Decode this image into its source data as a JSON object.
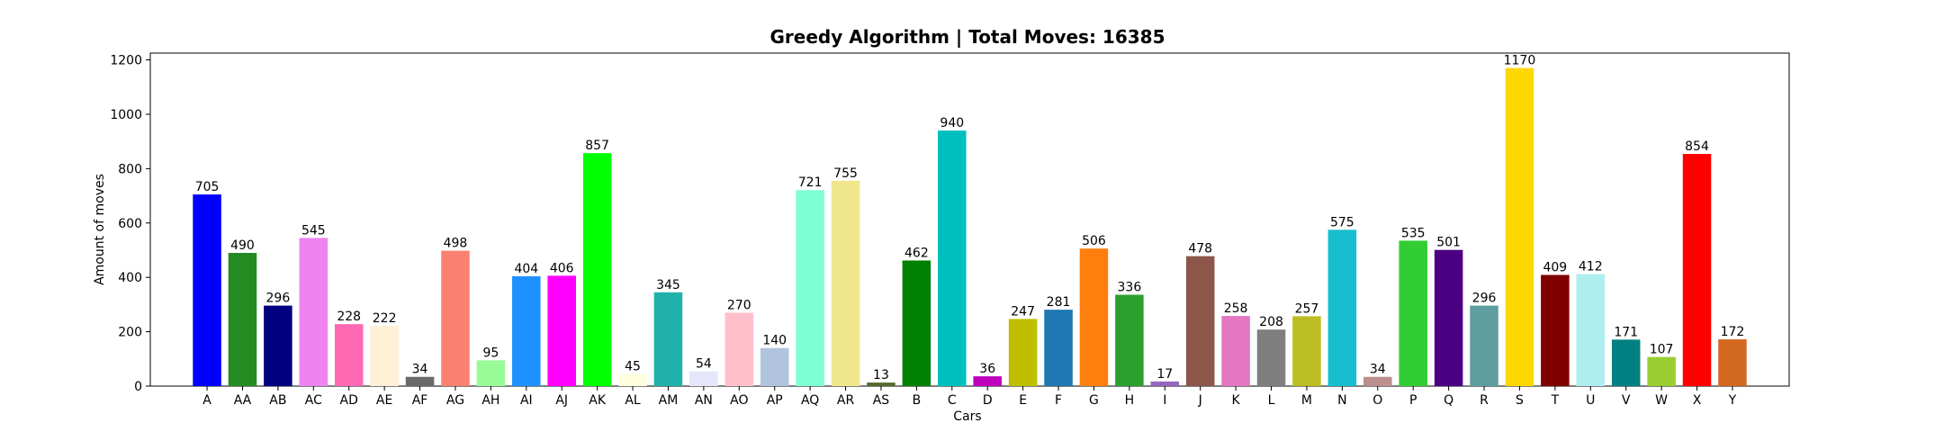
{
  "chart_data": {
    "type": "bar",
    "title": "Greedy Algorithm | Total Moves: 16385",
    "xlabel": "Cars",
    "ylabel": "Amount of moves",
    "ylim": [
      0,
      1225
    ],
    "yticks": [
      0,
      200,
      400,
      600,
      800,
      1000,
      1200
    ],
    "grid": false,
    "categories": [
      "A",
      "AA",
      "AB",
      "AC",
      "AD",
      "AE",
      "AF",
      "AG",
      "AH",
      "AI",
      "AJ",
      "AK",
      "AL",
      "AM",
      "AN",
      "AO",
      "AP",
      "AQ",
      "AR",
      "AS",
      "B",
      "C",
      "D",
      "E",
      "F",
      "G",
      "H",
      "I",
      "J",
      "K",
      "L",
      "M",
      "N",
      "O",
      "P",
      "Q",
      "R",
      "S",
      "T",
      "U",
      "V",
      "W",
      "X",
      "Y"
    ],
    "values": [
      705,
      490,
      296,
      545,
      228,
      222,
      34,
      498,
      95,
      404,
      406,
      857,
      45,
      345,
      54,
      270,
      140,
      721,
      755,
      13,
      462,
      940,
      36,
      247,
      281,
      506,
      336,
      17,
      478,
      258,
      208,
      257,
      575,
      34,
      535,
      501,
      296,
      1170,
      409,
      412,
      171,
      107,
      854,
      172
    ],
    "colors": [
      "#0000ff",
      "#228b22",
      "#000080",
      "#ee82ee",
      "#ff69b4",
      "#ffefd5",
      "#696969",
      "#fa8072",
      "#98fb98",
      "#1e90ff",
      "#ff00ff",
      "#00ff00",
      "#ffffe0",
      "#20b2aa",
      "#e6e6fa",
      "#ffc0cb",
      "#b0c4de",
      "#7fffd4",
      "#f0e68c",
      "#556b2f",
      "#008000",
      "#00bfbf",
      "#bf00bf",
      "#bfbf00",
      "#1f77b4",
      "#ff7f0e",
      "#2ca02c",
      "#9467bd",
      "#8c564b",
      "#e377c2",
      "#7f7f7f",
      "#bcbd22",
      "#17becf",
      "#bc8f8f",
      "#32cd32",
      "#4b0082",
      "#5f9ea0",
      "#ffd700",
      "#800000",
      "#afeeee",
      "#008080",
      "#9acd32",
      "#ff0000",
      "#d2691e"
    ]
  }
}
